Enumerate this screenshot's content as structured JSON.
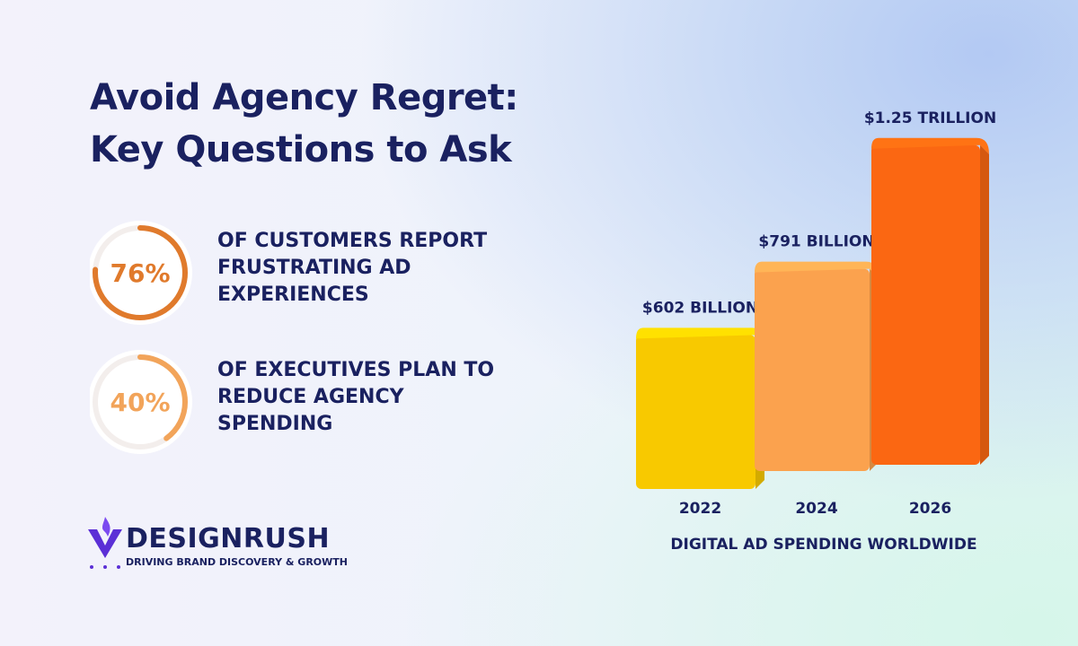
{
  "title": "Avoid Agency Regret: Key Questions to Ask",
  "stats": [
    {
      "value": 76,
      "value_label": "76%",
      "text": "OF CUSTOMERS REPORT FRUSTRATING AD EXPERIENCES",
      "color": "#e07a2c"
    },
    {
      "value": 40,
      "value_label": "40%",
      "text": "OF EXECUTIVES PLAN TO REDUCE AGENCY SPENDING",
      "color": "#f2a45a"
    }
  ],
  "brand": {
    "name": "DESIGNRUSH",
    "tagline": "DRIVING BRAND DISCOVERY & GROWTH"
  },
  "chart_data": {
    "type": "bar",
    "categories": [
      "2022",
      "2024",
      "2026"
    ],
    "values": [
      602,
      791,
      1250
    ],
    "value_labels": [
      "$602 BILLION",
      "$791 BILLION",
      "$1.25 TRILLION"
    ],
    "colors": [
      "#f8c900",
      "#fba24e",
      "#fb6712"
    ],
    "x_label": "DIGITAL AD SPENDING WORLDWIDE"
  }
}
